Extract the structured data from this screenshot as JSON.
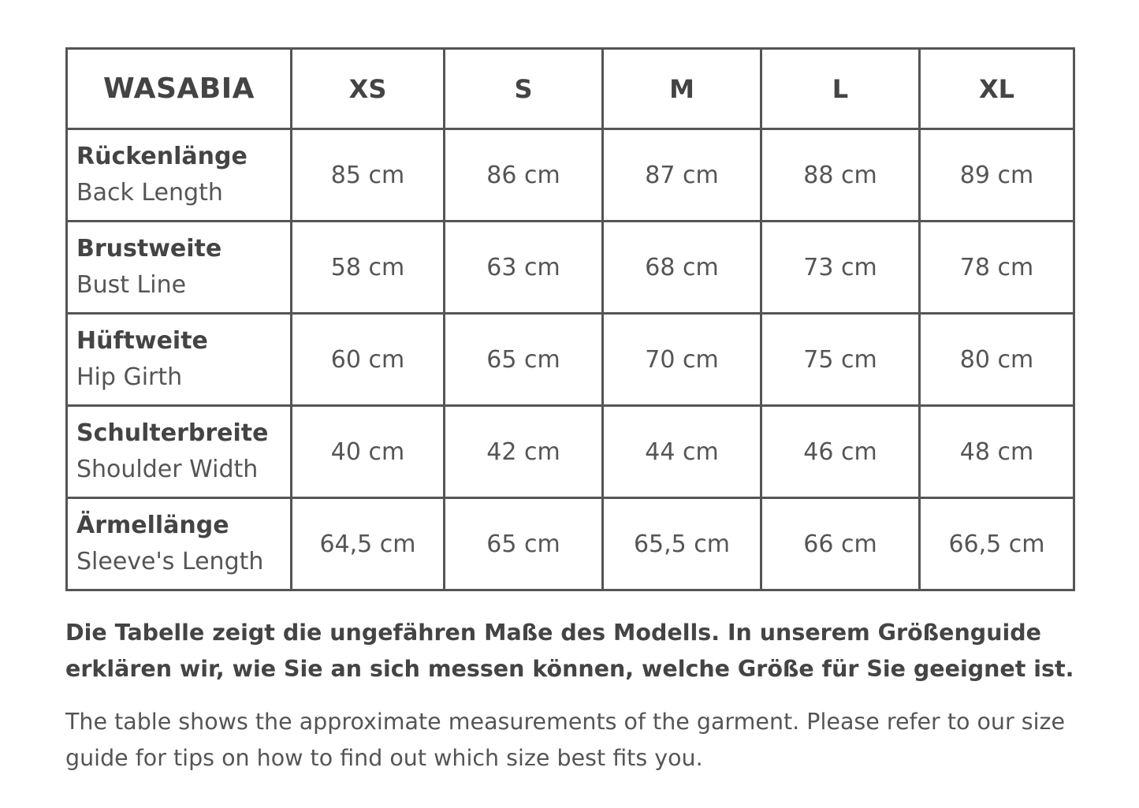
{
  "brand": "WASABIA",
  "sizes": [
    "XS",
    "S",
    "M",
    "L",
    "XL"
  ],
  "rows": [
    {
      "de": "Rückenlänge",
      "en": "Back Length",
      "values": [
        "85 cm",
        "86 cm",
        "87 cm",
        "88 cm",
        "89 cm"
      ]
    },
    {
      "de": "Brustweite",
      "en": "Bust Line",
      "values": [
        "58 cm",
        "63 cm",
        "68 cm",
        "73 cm",
        "78 cm"
      ]
    },
    {
      "de": "Hüftweite",
      "en": "Hip Girth",
      "values": [
        "60 cm",
        "65 cm",
        "70 cm",
        "75 cm",
        "80 cm"
      ]
    },
    {
      "de": "Schulterbreite",
      "en": "Shoulder Width",
      "values": [
        "40 cm",
        "42 cm",
        "44 cm",
        "46 cm",
        "48 cm"
      ]
    },
    {
      "de": "Ärmellänge",
      "en": "Sleeve's Length",
      "values": [
        "64,5 cm",
        "65 cm",
        "65,5 cm",
        "66 cm",
        "66,5 cm"
      ]
    }
  ],
  "note_de": "Die Tabelle zeigt die ungefähren Maße des Modells. In unserem Größenguide erklären wir, wie Sie an sich messen können, welche Größe für Sie geeignet ist.",
  "note_en": "The table shows the approximate measurements of the garment. Please refer to our size guide for tips on how to find out which size best fits you."
}
